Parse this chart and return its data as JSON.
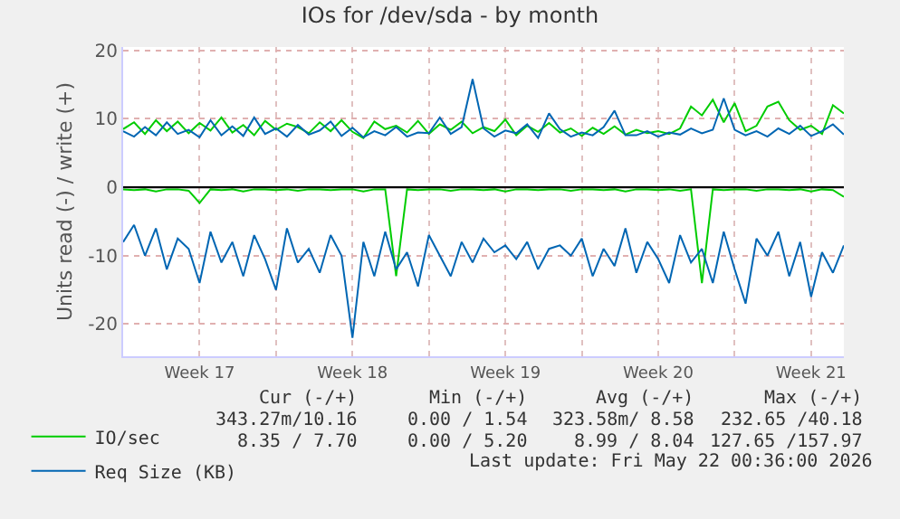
{
  "chart_data": {
    "type": "line",
    "title": "IOs for /dev/sda - by month",
    "ylabel": "Units read (-) / write (+)",
    "x": [
      "2026-04-20T00:00",
      "2026-04-20T12:00",
      "2026-04-21T00:00",
      "2026-04-21T12:00",
      "2026-04-22T00:00",
      "2026-04-22T12:00",
      "2026-04-23T00:00",
      "2026-04-23T12:00",
      "2026-04-24T00:00",
      "2026-04-24T12:00",
      "2026-04-25T00:00",
      "2026-04-25T12:00",
      "2026-04-26T00:00",
      "2026-04-26T12:00",
      "2026-04-27T00:00",
      "2026-04-27T12:00",
      "2026-04-28T00:00",
      "2026-04-28T12:00",
      "2026-04-29T00:00",
      "2026-04-29T12:00",
      "2026-04-30T00:00",
      "2026-04-30T12:00",
      "2026-05-01T00:00",
      "2026-05-01T12:00",
      "2026-05-02T00:00",
      "2026-05-02T12:00",
      "2026-05-03T00:00",
      "2026-05-03T12:00",
      "2026-05-04T00:00",
      "2026-05-04T12:00",
      "2026-05-05T00:00",
      "2026-05-05T12:00",
      "2026-05-06T00:00",
      "2026-05-06T12:00",
      "2026-05-07T00:00",
      "2026-05-07T12:00",
      "2026-05-08T00:00",
      "2026-05-08T12:00",
      "2026-05-09T00:00",
      "2026-05-09T12:00",
      "2026-05-10T00:00",
      "2026-05-10T12:00",
      "2026-05-11T00:00",
      "2026-05-11T12:00",
      "2026-05-12T00:00",
      "2026-05-12T12:00",
      "2026-05-13T00:00",
      "2026-05-13T12:00",
      "2026-05-14T00:00",
      "2026-05-14T12:00",
      "2026-05-15T00:00",
      "2026-05-15T12:00",
      "2026-05-16T00:00",
      "2026-05-16T12:00",
      "2026-05-17T00:00",
      "2026-05-17T12:00",
      "2026-05-18T00:00",
      "2026-05-18T12:00",
      "2026-05-19T00:00",
      "2026-05-19T12:00",
      "2026-05-20T00:00",
      "2026-05-20T12:00",
      "2026-05-21T00:00",
      "2026-05-21T12:00",
      "2026-05-22T00:00",
      "2026-05-22T12:00",
      "2026-05-23T00:00"
    ],
    "xlim": [
      "2026-04-20T00:00",
      "2026-05-23T00:00"
    ],
    "xticks": [
      {
        "value": "2026-04-23T12:00",
        "label": "Week 17"
      },
      {
        "value": "2026-04-27T00:00",
        "label": null
      },
      {
        "value": "2026-04-30T12:00",
        "label": "Week 18"
      },
      {
        "value": "2026-05-04T00:00",
        "label": null
      },
      {
        "value": "2026-05-07T12:00",
        "label": "Week 19"
      },
      {
        "value": "2026-05-11T00:00",
        "label": null
      },
      {
        "value": "2026-05-14T12:00",
        "label": "Week 20"
      },
      {
        "value": "2026-05-18T00:00",
        "label": null
      },
      {
        "value": "2026-05-21T12:00",
        "label": "Week 21"
      }
    ],
    "ylim": [
      -24.7,
      20.5
    ],
    "yticks": [
      -20,
      -10,
      0,
      10,
      20
    ],
    "grid": true,
    "legend": "bottom left",
    "line_style": "solid",
    "marker": "none",
    "ref_lines": [
      {
        "axis": "y",
        "value": 0,
        "color": "#000000"
      }
    ],
    "series": [
      {
        "name": "IO/sec",
        "color": "#00cc00",
        "values": [
          8.5,
          9.5,
          7.8,
          9.8,
          8.2,
          9.6,
          7.9,
          9.4,
          8.3,
          10.2,
          8.0,
          9.1,
          7.6,
          9.7,
          8.4,
          9.3,
          8.8,
          7.9,
          9.5,
          8.2,
          9.8,
          8.1,
          7.2,
          9.6,
          8.5,
          9.0,
          8.0,
          9.7,
          7.8,
          9.2,
          8.4,
          9.6,
          7.9,
          8.8,
          8.2,
          9.9,
          7.6,
          9.0,
          8.1,
          9.4,
          8.0,
          8.6,
          7.5,
          8.7,
          7.8,
          8.9,
          7.7,
          8.4,
          7.9,
          8.2,
          7.8,
          8.6,
          11.8,
          10.5,
          12.8,
          9.5,
          12.3,
          8.2,
          9.0,
          11.8,
          12.5,
          9.8,
          8.4,
          9.0,
          7.8,
          12.0,
          10.8
        ]
      },
      {
        "name": "Req Size (KB)",
        "color": "#0066b3",
        "values": [
          8.2,
          7.4,
          8.8,
          7.6,
          9.5,
          7.8,
          8.4,
          7.3,
          9.8,
          7.6,
          8.9,
          7.5,
          10.2,
          7.8,
          8.6,
          7.4,
          9.1,
          7.7,
          8.3,
          9.6,
          7.5,
          8.7,
          7.3,
          8.2,
          7.6,
          8.8,
          7.4,
          8.0,
          7.9,
          10.2,
          7.8,
          8.8,
          15.8,
          8.6,
          7.4,
          8.3,
          7.9,
          9.2,
          7.2,
          10.8,
          8.5,
          7.4,
          8.0,
          7.6,
          8.8,
          11.2,
          7.6,
          7.6,
          8.2,
          7.4,
          8.0,
          7.7,
          8.6,
          7.9,
          8.4,
          13.0,
          8.4,
          7.6,
          8.2,
          7.4,
          8.6,
          7.8,
          9.0,
          7.5,
          8.2,
          9.2,
          7.7
        ]
      },
      {
        "color": "#00cc00",
        "values": [
          -0.3,
          -0.4,
          -0.3,
          -0.6,
          -0.3,
          -0.3,
          -0.5,
          -2.3,
          -0.3,
          -0.4,
          -0.3,
          -0.6,
          -0.3,
          -0.3,
          -0.4,
          -0.3,
          -0.5,
          -0.3,
          -0.3,
          -0.4,
          -0.3,
          -0.3,
          -0.6,
          -0.3,
          -0.3,
          -13,
          -0.3,
          -0.4,
          -0.3,
          -0.3,
          -0.5,
          -0.3,
          -0.3,
          -0.4,
          -0.3,
          -0.6,
          -0.3,
          -0.3,
          -0.4,
          -0.3,
          -0.3,
          -0.5,
          -0.3,
          -0.3,
          -0.4,
          -0.3,
          -0.6,
          -0.3,
          -0.3,
          -0.4,
          -0.3,
          -0.5,
          -0.3,
          -14,
          -0.3,
          -0.4,
          -0.3,
          -0.3,
          -0.5,
          -0.3,
          -0.3,
          -0.4,
          -0.3,
          -0.6,
          -0.3,
          -0.4,
          -1.4
        ]
      },
      {
        "color": "#0066b3",
        "values": [
          -8,
          -5.5,
          -10,
          -6,
          -12,
          -7.5,
          -9,
          -14,
          -6.5,
          -11,
          -8,
          -13,
          -7,
          -10.5,
          -15,
          -6,
          -11,
          -9,
          -12.5,
          -7,
          -10,
          -22,
          -8,
          -13,
          -6.5,
          -12,
          -9.5,
          -14.5,
          -7,
          -10,
          -13,
          -8,
          -11,
          -7.5,
          -9.5,
          -8.5,
          -10.5,
          -8,
          -12,
          -9,
          -8.5,
          -10,
          -7.5,
          -13,
          -9,
          -11.5,
          -6,
          -12.5,
          -8,
          -10.5,
          -14,
          -7,
          -11,
          -9,
          -14,
          -6.5,
          -12,
          -17,
          -7.5,
          -10,
          -6.5,
          -13,
          -8,
          -16,
          -9.5,
          -12.5,
          -8.5
        ]
      }
    ],
    "annotations": [
      "Cur (-/+)",
      "Min (-/+)",
      "Avg (-/+)",
      "Max (-/+)",
      "343.27m/10.16",
      "0.00 / 1.54",
      "323.58m/ 8.58",
      "232.65 /40.18",
      "8.35 / 7.70",
      "0.00 / 5.20",
      "8.99 / 8.04",
      "127.65 /157.97",
      "Last update: Fri May 22 00:36:00 2026"
    ]
  }
}
